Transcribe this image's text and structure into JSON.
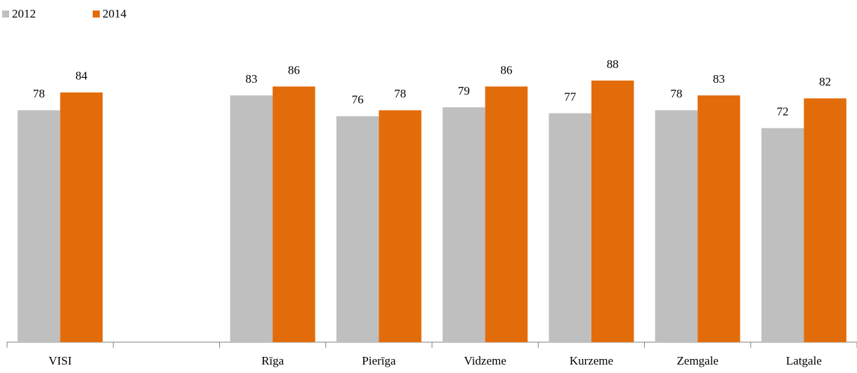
{
  "chart_data": {
    "type": "bar",
    "categories": [
      "VISI",
      null,
      "Rīga",
      "Pierīga",
      "Vidzeme",
      "Kurzeme",
      "Zemgale",
      "Latgale"
    ],
    "series": [
      {
        "name": "2012",
        "color": "#bfbfbf",
        "values": [
          78,
          null,
          83,
          76,
          79,
          77,
          78,
          72
        ]
      },
      {
        "name": "2014",
        "color": "#e36c0a",
        "values": [
          84,
          null,
          86,
          78,
          86,
          88,
          83,
          82
        ]
      }
    ],
    "ylim": [
      0,
      100
    ],
    "legend": "top-left"
  }
}
